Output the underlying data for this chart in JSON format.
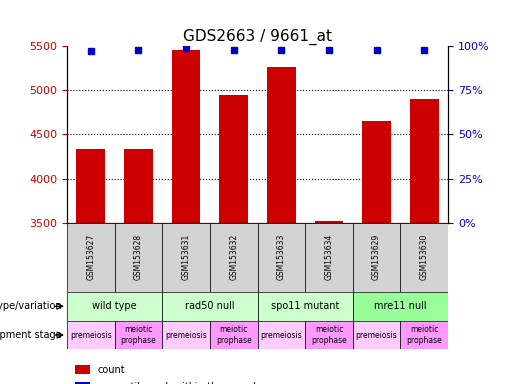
{
  "title": "GDS2663 / 9661_at",
  "samples": [
    "GSM153627",
    "GSM153628",
    "GSM153631",
    "GSM153632",
    "GSM153633",
    "GSM153634",
    "GSM153629",
    "GSM153630"
  ],
  "counts": [
    4340,
    4330,
    5460,
    4950,
    5260,
    3520,
    4650,
    4900
  ],
  "percentile_ranks": [
    97,
    98,
    99,
    98,
    98,
    98,
    98,
    98
  ],
  "ylim_left": [
    3500,
    5500
  ],
  "yticks_left": [
    3500,
    4000,
    4500,
    5000,
    5500
  ],
  "ylim_right": [
    0,
    100
  ],
  "yticks_right": [
    0,
    25,
    50,
    75,
    100
  ],
  "bar_color": "#cc0000",
  "marker_color": "#0000cc",
  "title_fontsize": 11,
  "genotype_groups": [
    {
      "label": "wild type",
      "start": 0,
      "end": 2,
      "color": "#ccffcc"
    },
    {
      "label": "rad50 null",
      "start": 2,
      "end": 4,
      "color": "#ccffcc"
    },
    {
      "label": "spo11 mutant",
      "start": 4,
      "end": 6,
      "color": "#ccffcc"
    },
    {
      "label": "mre11 null",
      "start": 6,
      "end": 8,
      "color": "#99ff99"
    }
  ],
  "dev_stage_groups": [
    {
      "label": "premeiosis",
      "start": 0,
      "end": 1,
      "color": "#ffccff"
    },
    {
      "label": "meiotic\nprophase",
      "start": 1,
      "end": 2,
      "color": "#ff99ff"
    },
    {
      "label": "premeiosis",
      "start": 2,
      "end": 3,
      "color": "#ffccff"
    },
    {
      "label": "meiotic\nprophase",
      "start": 3,
      "end": 4,
      "color": "#ff99ff"
    },
    {
      "label": "premeiosis",
      "start": 4,
      "end": 5,
      "color": "#ffccff"
    },
    {
      "label": "meiotic\nprophase",
      "start": 5,
      "end": 6,
      "color": "#ff99ff"
    },
    {
      "label": "premeiosis",
      "start": 6,
      "end": 7,
      "color": "#ffccff"
    },
    {
      "label": "meiotic\nprophase",
      "start": 7,
      "end": 8,
      "color": "#ff99ff"
    }
  ],
  "label_genotype": "genotype/variation",
  "label_devstage": "development stage",
  "legend_count_color": "#cc0000",
  "legend_marker_color": "#0000cc",
  "legend_count_label": "count",
  "legend_marker_label": "percentile rank within the sample"
}
